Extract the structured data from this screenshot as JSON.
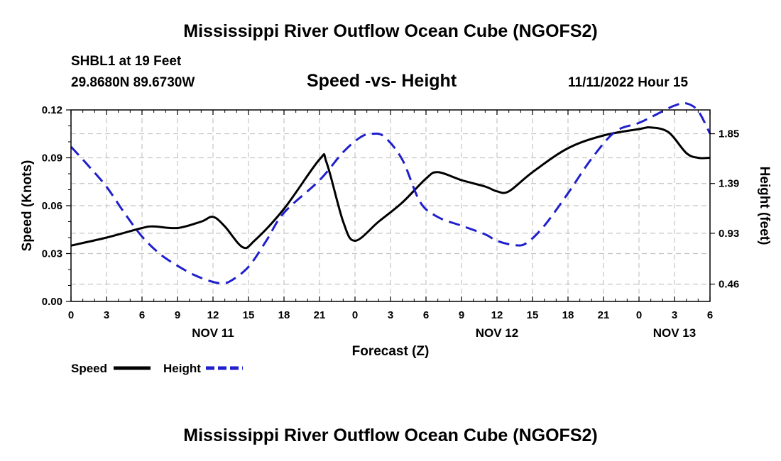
{
  "top_title": "Mississippi River Outflow Ocean Cube (NGOFS2)",
  "bottom_title": "Mississippi River Outflow Ocean Cube (NGOFS2)",
  "station": "SHBL1 at 19 Feet",
  "coords": "29.8680N  89.6730W",
  "datetime": "11/11/2022 Hour 15",
  "chart_data": {
    "type": "line",
    "title": "Speed -vs- Height",
    "xlabel": "Forecast (Z)",
    "ylabel": "Speed (Knots)",
    "y2label": "Height (feet)",
    "xlim": [
      0,
      54
    ],
    "ylim": [
      0,
      0.12
    ],
    "y2lim": [
      0.3,
      2.07
    ],
    "x_ticks": [
      0,
      3,
      6,
      9,
      12,
      15,
      18,
      21,
      24,
      27,
      30,
      33,
      36,
      39,
      42,
      45,
      48,
      51,
      54
    ],
    "x_tick_labels": [
      "0",
      "3",
      "6",
      "9",
      "12",
      "15",
      "18",
      "21",
      "0",
      "3",
      "6",
      "9",
      "12",
      "15",
      "18",
      "21",
      "0",
      "3",
      "6"
    ],
    "y_ticks": [
      0,
      0.03,
      0.06,
      0.09,
      0.12
    ],
    "y_tick_labels": [
      "0.00",
      "0.03",
      "0.06",
      "0.09",
      "0.12"
    ],
    "y2_ticks": [
      0.46,
      0.93,
      1.39,
      1.85
    ],
    "y2_tick_labels": [
      "0.46",
      "0.93",
      "1.39",
      "1.85"
    ],
    "date_labels": [
      {
        "x": 12,
        "label": "NOV 11"
      },
      {
        "x": 36,
        "label": "NOV 12"
      },
      {
        "x": 51,
        "label": "NOV 13"
      }
    ],
    "series": [
      {
        "name": "Speed",
        "axis": "left",
        "color": "#000000",
        "dash": "solid",
        "x": [
          0,
          3,
          6,
          7,
          9,
          11,
          12,
          13,
          14.5,
          15.5,
          18,
          21,
          21.6,
          23,
          24,
          26,
          28,
          30,
          31,
          33,
          35,
          36,
          37,
          39,
          42,
          45,
          48,
          49,
          50.5,
          52,
          53,
          54
        ],
        "values": [
          0.035,
          0.04,
          0.046,
          0.047,
          0.046,
          0.05,
          0.053,
          0.047,
          0.034,
          0.038,
          0.058,
          0.089,
          0.087,
          0.05,
          0.038,
          0.05,
          0.062,
          0.077,
          0.081,
          0.076,
          0.072,
          0.069,
          0.069,
          0.081,
          0.096,
          0.104,
          0.108,
          0.109,
          0.106,
          0.093,
          0.09,
          0.09
        ]
      },
      {
        "name": "Height",
        "axis": "right",
        "color": "#1f1fcc",
        "dash": "dashed",
        "x": [
          0,
          1.5,
          3,
          4.5,
          6,
          7.5,
          9,
          10.5,
          12,
          12.8,
          13.5,
          15,
          16.5,
          18,
          21,
          23,
          24.5,
          25.5,
          26.5,
          28,
          29.5,
          31,
          33,
          35,
          36,
          37.5,
          38.5,
          40,
          42,
          44,
          46,
          48,
          49.5,
          51,
          52,
          53,
          54
        ],
        "values": [
          1.73,
          1.55,
          1.36,
          1.12,
          0.9,
          0.74,
          0.63,
          0.54,
          0.48,
          0.47,
          0.49,
          0.62,
          0.86,
          1.12,
          1.42,
          1.68,
          1.82,
          1.85,
          1.82,
          1.61,
          1.22,
          1.08,
          1.0,
          0.92,
          0.86,
          0.82,
          0.84,
          1.0,
          1.3,
          1.62,
          1.87,
          1.95,
          2.03,
          2.11,
          2.13,
          2.06,
          1.85
        ]
      }
    ],
    "legend": [
      {
        "label": "Speed",
        "color": "#000000",
        "dash": "solid"
      },
      {
        "label": "Height",
        "color": "#1f1fcc",
        "dash": "dashed"
      }
    ],
    "legend_position": "bottom-left",
    "grid": true
  }
}
